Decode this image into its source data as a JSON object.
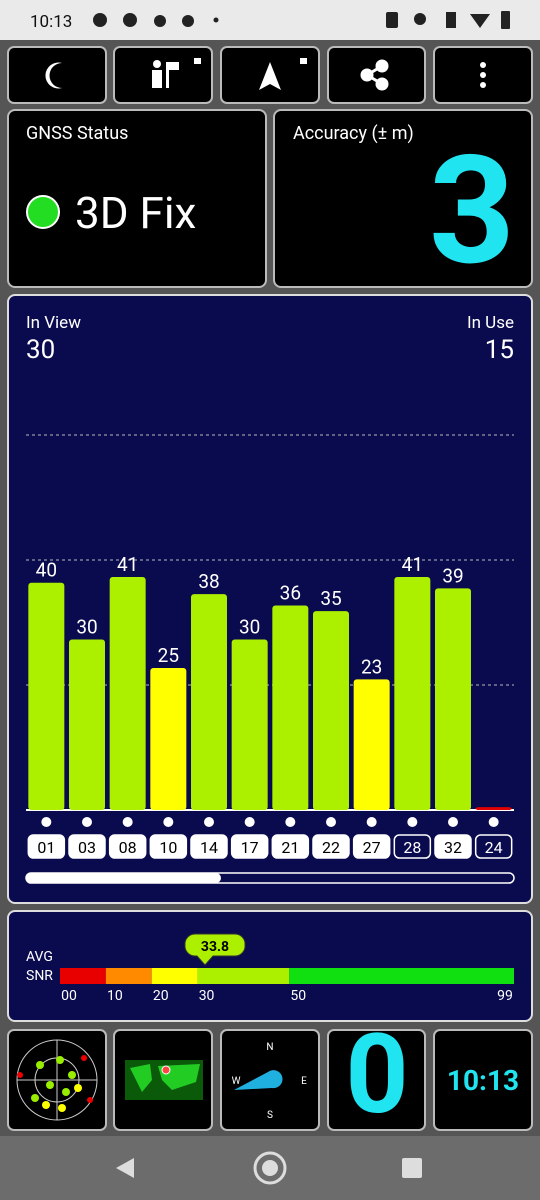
{
  "status_bar": {
    "time": "10:13"
  },
  "gnss_status": {
    "title": "GNSS Status",
    "fix": "3D Fix"
  },
  "accuracy": {
    "title": "Accuracy (± m)",
    "value": "3"
  },
  "satellites": {
    "in_view_label": "In View",
    "in_view": "30",
    "in_use_label": "In Use",
    "in_use": "15"
  },
  "snr_chart": {
    "type": "bar",
    "categories": [
      "01",
      "03",
      "08",
      "10",
      "14",
      "17",
      "21",
      "22",
      "27",
      "28",
      "32",
      "24"
    ],
    "values": [
      40,
      30,
      41,
      25,
      38,
      30,
      36,
      35,
      23,
      41,
      39,
      0.5
    ],
    "value_labels": [
      "40",
      "30",
      "41",
      "25",
      "38",
      "30",
      "36",
      "35",
      "23",
      "41",
      "39",
      null
    ],
    "colors": [
      "#acf000",
      "#acf000",
      "#acf000",
      "#ffff00",
      "#acf000",
      "#acf000",
      "#acf000",
      "#acf000",
      "#ffff00",
      "#acf000",
      "#acf000",
      "#e00000"
    ],
    "in_use": [
      true,
      true,
      true,
      true,
      true,
      true,
      true,
      true,
      true,
      false,
      true,
      false
    ],
    "ylim": [
      0,
      88
    ],
    "yticks": [
      22,
      44,
      66
    ],
    "grid": true
  },
  "avg_snr": {
    "avg_label": "AVG",
    "snr_label": "SNR",
    "value": 33.8,
    "xlim": [
      0,
      99
    ],
    "xticks": [
      {
        "value": 0,
        "label": "00"
      },
      10,
      20,
      30,
      50,
      99
    ],
    "bands": [
      {
        "start": 0,
        "end": 10,
        "color": "#e80000"
      },
      {
        "start": 10,
        "end": 20,
        "color": "#ff8a00"
      },
      {
        "start": 20,
        "end": 30,
        "color": "#ffff00"
      },
      {
        "start": 30,
        "end": 50,
        "color": "#acf000"
      },
      {
        "start": 50,
        "end": 99,
        "color": "#10e010"
      }
    ]
  },
  "compass": {
    "n": "N",
    "e": "E",
    "s": "S",
    "w": "W"
  },
  "bottom_row": {
    "speed": "0",
    "clock": "10:13"
  }
}
